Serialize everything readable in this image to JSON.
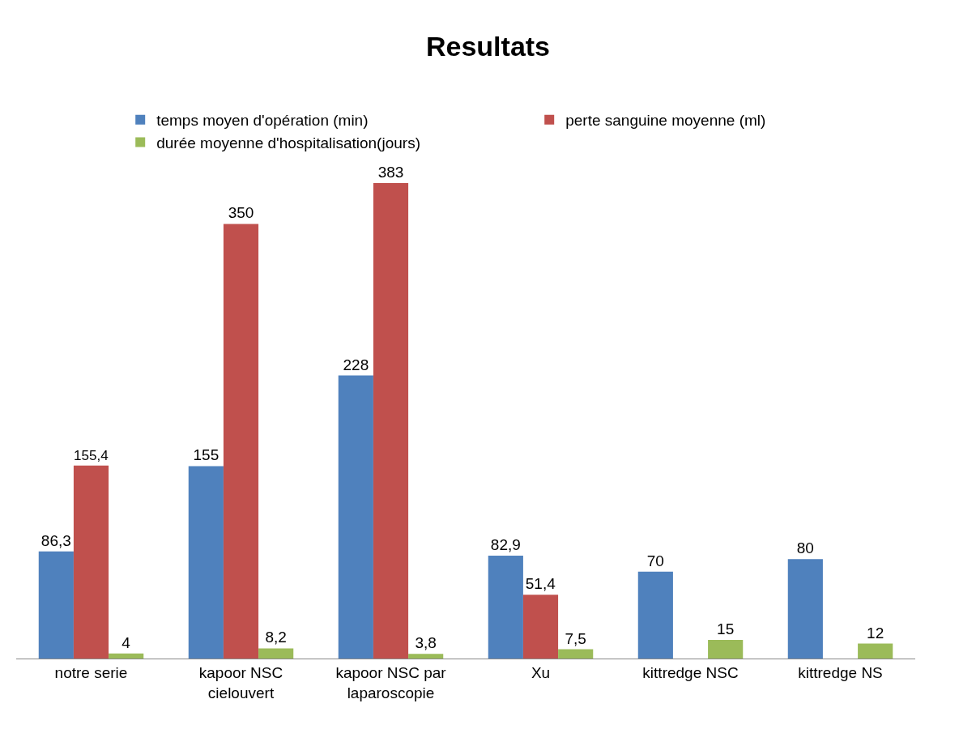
{
  "chart_data": {
    "type": "bar",
    "title": "Resultats",
    "categories": [
      "notre serie",
      "kapoor NSC cielouvert",
      "kapoor NSC par laparoscopie",
      "Xu",
      "kittredge NSC",
      "kittredge NS"
    ],
    "series": [
      {
        "name": "temps moyen d'opération (min)",
        "color": "#4f81bd",
        "values": [
          86.3,
          155,
          228,
          82.9,
          70,
          80
        ],
        "value_labels": [
          "86,3",
          "155",
          "228",
          "82,9",
          "70",
          "80"
        ]
      },
      {
        "name": "perte sanguine moyenne (ml)",
        "color": "#c0504d",
        "values": [
          155.4,
          350,
          383,
          51.4,
          null,
          null
        ],
        "value_labels": [
          "155,4",
          "350",
          "383",
          "51,4",
          null,
          null
        ]
      },
      {
        "name": "durée moyenne d'hospitalisation(jours)",
        "color": "#9bbb59",
        "values": [
          4,
          8.2,
          3.8,
          7.5,
          15,
          12
        ],
        "value_labels": [
          "4",
          "8,2",
          "3,8",
          "7,5",
          "15",
          "12"
        ]
      }
    ],
    "legend": "top"
  }
}
